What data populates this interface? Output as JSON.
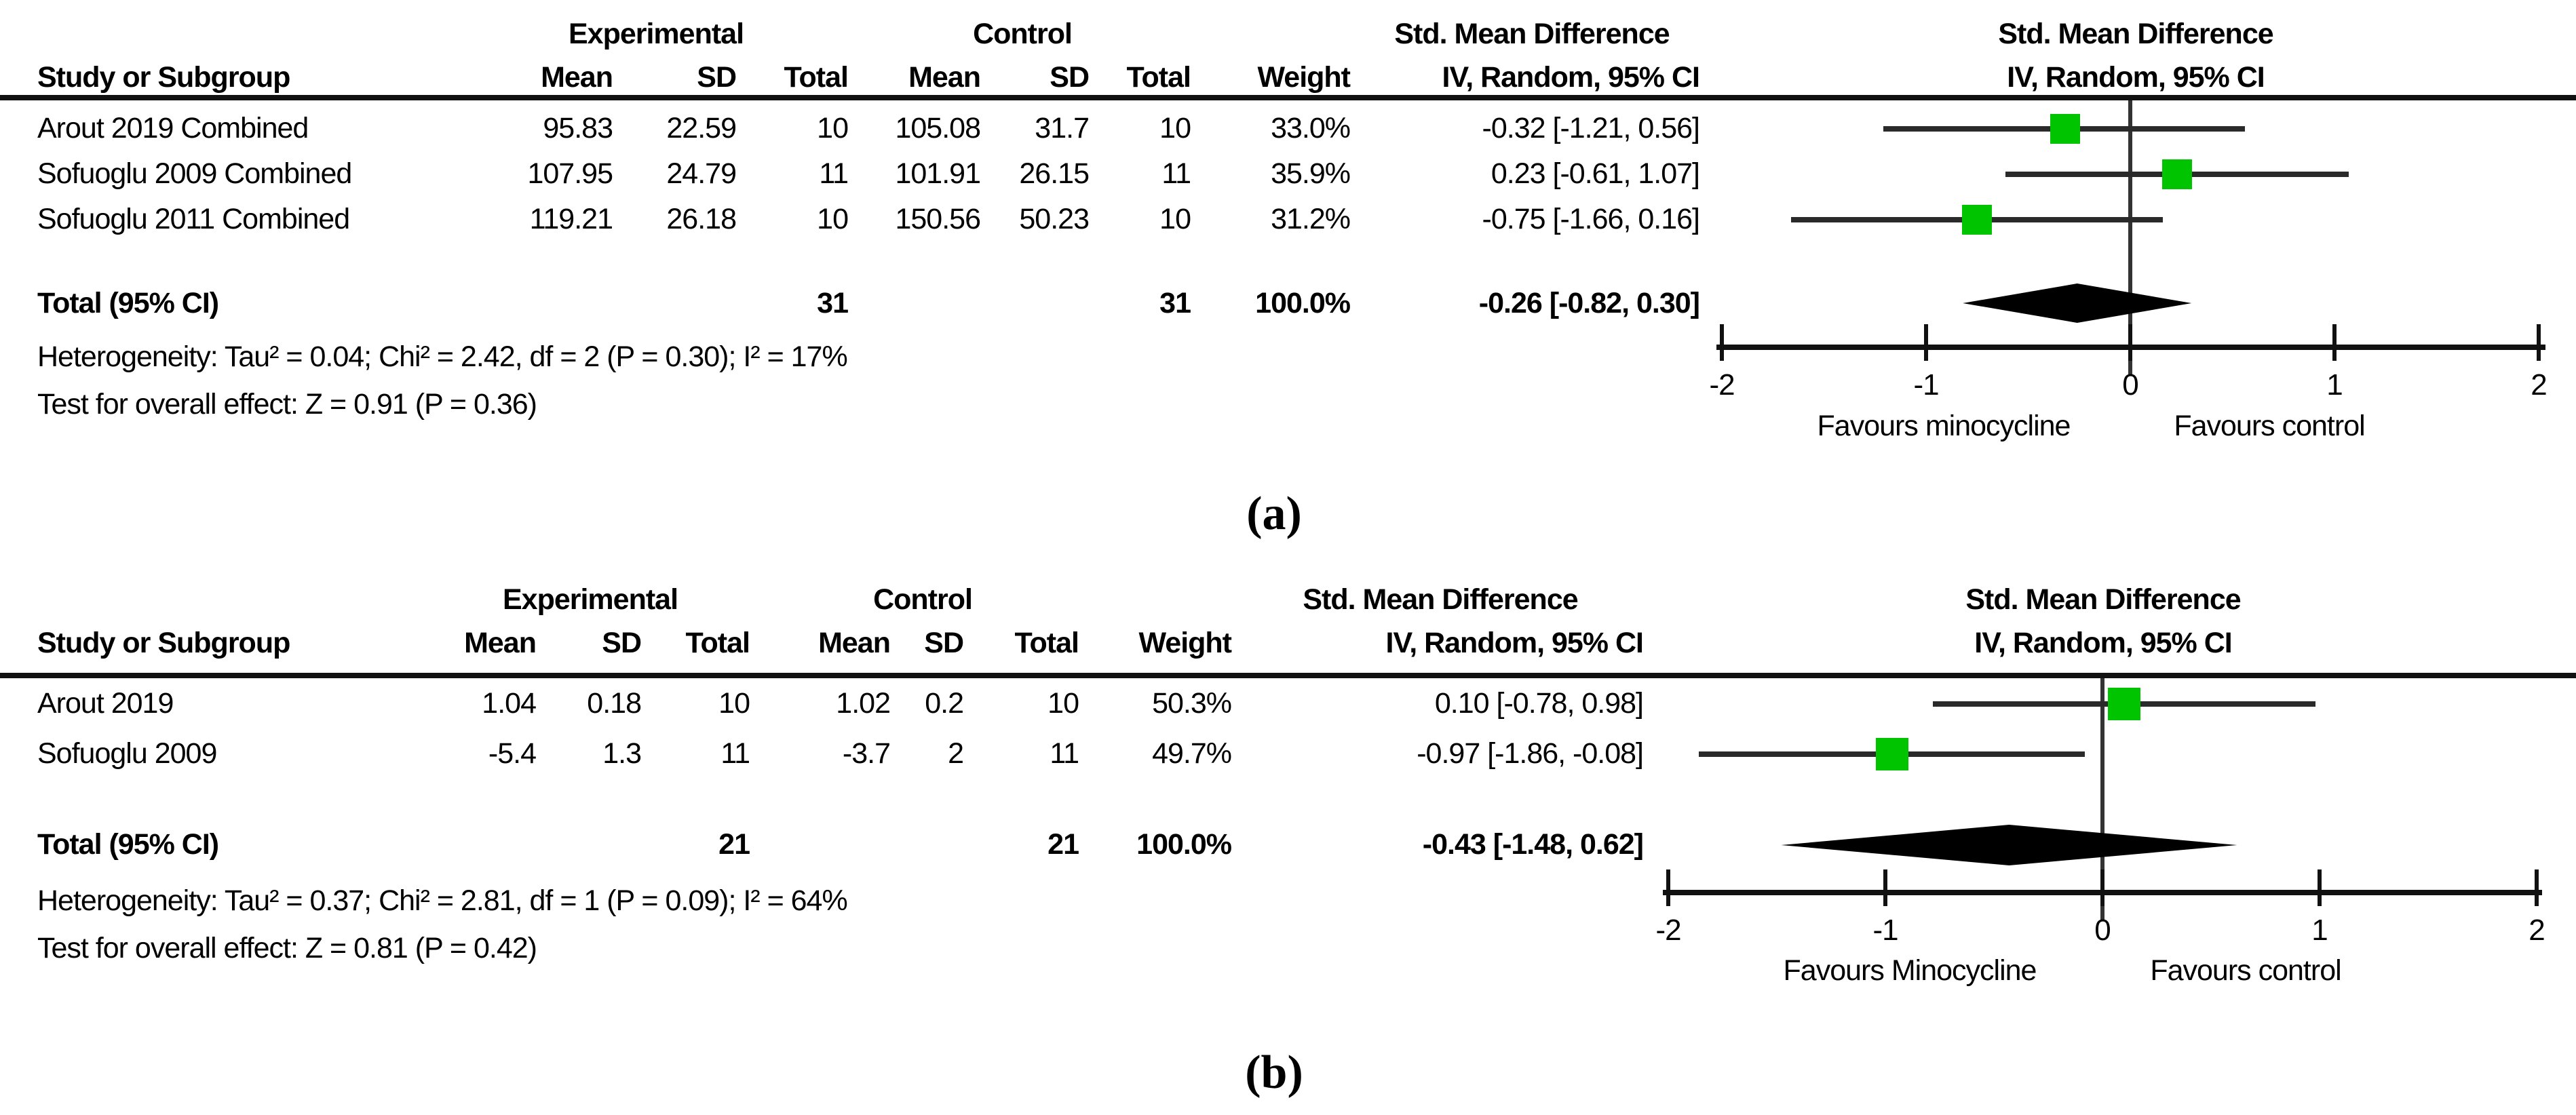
{
  "colors": {
    "marker_green": "#00c400",
    "diamond_black": "#000000",
    "line_black": "#2a2a2a",
    "rule_black": "#111111",
    "text_black": "#000000"
  },
  "panels": [
    {
      "caption": "(a)",
      "labels": {
        "experimental": "Experimental",
        "control": "Control",
        "smd": "Std. Mean Difference",
        "method": "IV, Random, 95% CI",
        "study_or_subgroup": "Study or Subgroup",
        "mean": "Mean",
        "sd": "SD",
        "total": "Total",
        "weight": "Weight"
      },
      "rows": [
        {
          "study": "Arout 2019 Combined",
          "exp_mean": "95.83",
          "exp_sd": "22.59",
          "exp_total": "10",
          "ctrl_mean": "105.08",
          "ctrl_sd": "31.7",
          "ctrl_total": "10",
          "weight": "33.0%",
          "ci_text": "-0.32 [-1.21, 0.56]",
          "est": -0.32,
          "lo": -1.21,
          "hi": 0.56
        },
        {
          "study": "Sofuoglu 2009 Combined",
          "exp_mean": "107.95",
          "exp_sd": "24.79",
          "exp_total": "11",
          "ctrl_mean": "101.91",
          "ctrl_sd": "26.15",
          "ctrl_total": "11",
          "weight": "35.9%",
          "ci_text": "0.23 [-0.61, 1.07]",
          "est": 0.23,
          "lo": -0.61,
          "hi": 1.07
        },
        {
          "study": "Sofuoglu 2011 Combined",
          "exp_mean": "119.21",
          "exp_sd": "26.18",
          "exp_total": "10",
          "ctrl_mean": "150.56",
          "ctrl_sd": "50.23",
          "ctrl_total": "10",
          "weight": "31.2%",
          "ci_text": "-0.75 [-1.66, 0.16]",
          "est": -0.75,
          "lo": -1.66,
          "hi": 0.16
        }
      ],
      "total_row": {
        "label": "Total (95% CI)",
        "exp_total": "31",
        "ctrl_total": "31",
        "weight": "100.0%",
        "ci_text": "-0.26 [-0.82, 0.30]",
        "est": -0.26,
        "lo": -0.82,
        "hi": 0.3
      },
      "heterogeneity": "Heterogeneity: Tau² = 0.04; Chi² = 2.42, df = 2 (P = 0.30); I² = 17%",
      "overall_effect": "Test for overall effect: Z = 0.91 (P = 0.36)",
      "axis": {
        "ticks": [
          -2,
          -1,
          0,
          1,
          2
        ],
        "favours_left": "Favours minocycline",
        "favours_right": "Favours control"
      }
    },
    {
      "caption": "(b)",
      "labels": {
        "experimental": "Experimental",
        "control": "Control",
        "smd": "Std. Mean Difference",
        "method": "IV, Random, 95% CI",
        "study_or_subgroup": "Study or Subgroup",
        "mean": "Mean",
        "sd": "SD",
        "total": "Total",
        "weight": "Weight"
      },
      "rows": [
        {
          "study": "Arout 2019",
          "exp_mean": "1.04",
          "exp_sd": "0.18",
          "exp_total": "10",
          "ctrl_mean": "1.02",
          "ctrl_sd": "0.2",
          "ctrl_total": "10",
          "weight": "50.3%",
          "ci_text": "0.10 [-0.78, 0.98]",
          "est": 0.1,
          "lo": -0.78,
          "hi": 0.98
        },
        {
          "study": "Sofuoglu 2009",
          "exp_mean": "-5.4",
          "exp_sd": "1.3",
          "exp_total": "11",
          "ctrl_mean": "-3.7",
          "ctrl_sd": "2",
          "ctrl_total": "11",
          "weight": "49.7%",
          "ci_text": "-0.97 [-1.86, -0.08]",
          "est": -0.97,
          "lo": -1.86,
          "hi": -0.08
        }
      ],
      "total_row": {
        "label": "Total (95% CI)",
        "exp_total": "21",
        "ctrl_total": "21",
        "weight": "100.0%",
        "ci_text": "-0.43 [-1.48, 0.62]",
        "est": -0.43,
        "lo": -1.48,
        "hi": 0.62
      },
      "heterogeneity": "Heterogeneity: Tau² = 0.37; Chi² = 2.81, df = 1 (P = 0.09); I² = 64%",
      "overall_effect": "Test for overall effect: Z = 0.81 (P = 0.42)",
      "axis": {
        "ticks": [
          -2,
          -1,
          0,
          1,
          2
        ],
        "favours_left": "Favours Minocycline",
        "favours_right": "Favours control"
      }
    }
  ],
  "chart_data": [
    {
      "type": "scatter",
      "subtype": "forest_plot",
      "title": "Std. Mean Difference — IV, Random, 95% CI",
      "categories": [
        "Arout 2019 Combined",
        "Sofuoglu 2009 Combined",
        "Sofuoglu 2011 Combined"
      ],
      "series": [
        {
          "name": "estimate",
          "values": [
            -0.32,
            0.23,
            -0.75
          ]
        },
        {
          "name": "ci_low",
          "values": [
            -1.21,
            -0.61,
            -1.66
          ]
        },
        {
          "name": "ci_high",
          "values": [
            0.56,
            1.07,
            0.16
          ]
        },
        {
          "name": "weight_pct",
          "values": [
            33.0,
            35.9,
            31.2
          ]
        }
      ],
      "pooled": {
        "estimate": -0.26,
        "ci_low": -0.82,
        "ci_high": 0.3,
        "total_exp": 31,
        "total_ctrl": 31,
        "weight_pct": 100.0
      },
      "xlim": [
        -2,
        2
      ],
      "tick_labels": [
        "-2",
        "-1",
        "0",
        "1",
        "2"
      ],
      "xlabel": "Favours minocycline | Favours control",
      "annotations": [
        "Heterogeneity: Tau² = 0.04; Chi² = 2.42, df = 2 (P = 0.30); I² = 17%",
        "Test for overall effect: Z = 0.91 (P = 0.36)"
      ],
      "legend_position": "none",
      "grid": false
    },
    {
      "type": "scatter",
      "subtype": "forest_plot",
      "title": "Std. Mean Difference — IV, Random, 95% CI",
      "categories": [
        "Arout 2019",
        "Sofuoglu 2009"
      ],
      "series": [
        {
          "name": "estimate",
          "values": [
            0.1,
            -0.97
          ]
        },
        {
          "name": "ci_low",
          "values": [
            -0.78,
            -1.86
          ]
        },
        {
          "name": "ci_high",
          "values": [
            0.98,
            -0.08
          ]
        },
        {
          "name": "weight_pct",
          "values": [
            50.3,
            49.7
          ]
        }
      ],
      "pooled": {
        "estimate": -0.43,
        "ci_low": -1.48,
        "ci_high": 0.62,
        "total_exp": 21,
        "total_ctrl": 21,
        "weight_pct": 100.0
      },
      "xlim": [
        -2,
        2
      ],
      "tick_labels": [
        "-2",
        "-1",
        "0",
        "1",
        "2"
      ],
      "xlabel": "Favours Minocycline | Favours control",
      "annotations": [
        "Heterogeneity: Tau² = 0.37; Chi² = 2.81, df = 1 (P = 0.09); I² = 64%",
        "Test for overall effect: Z = 0.81 (P = 0.42)"
      ],
      "legend_position": "none",
      "grid": false
    }
  ]
}
